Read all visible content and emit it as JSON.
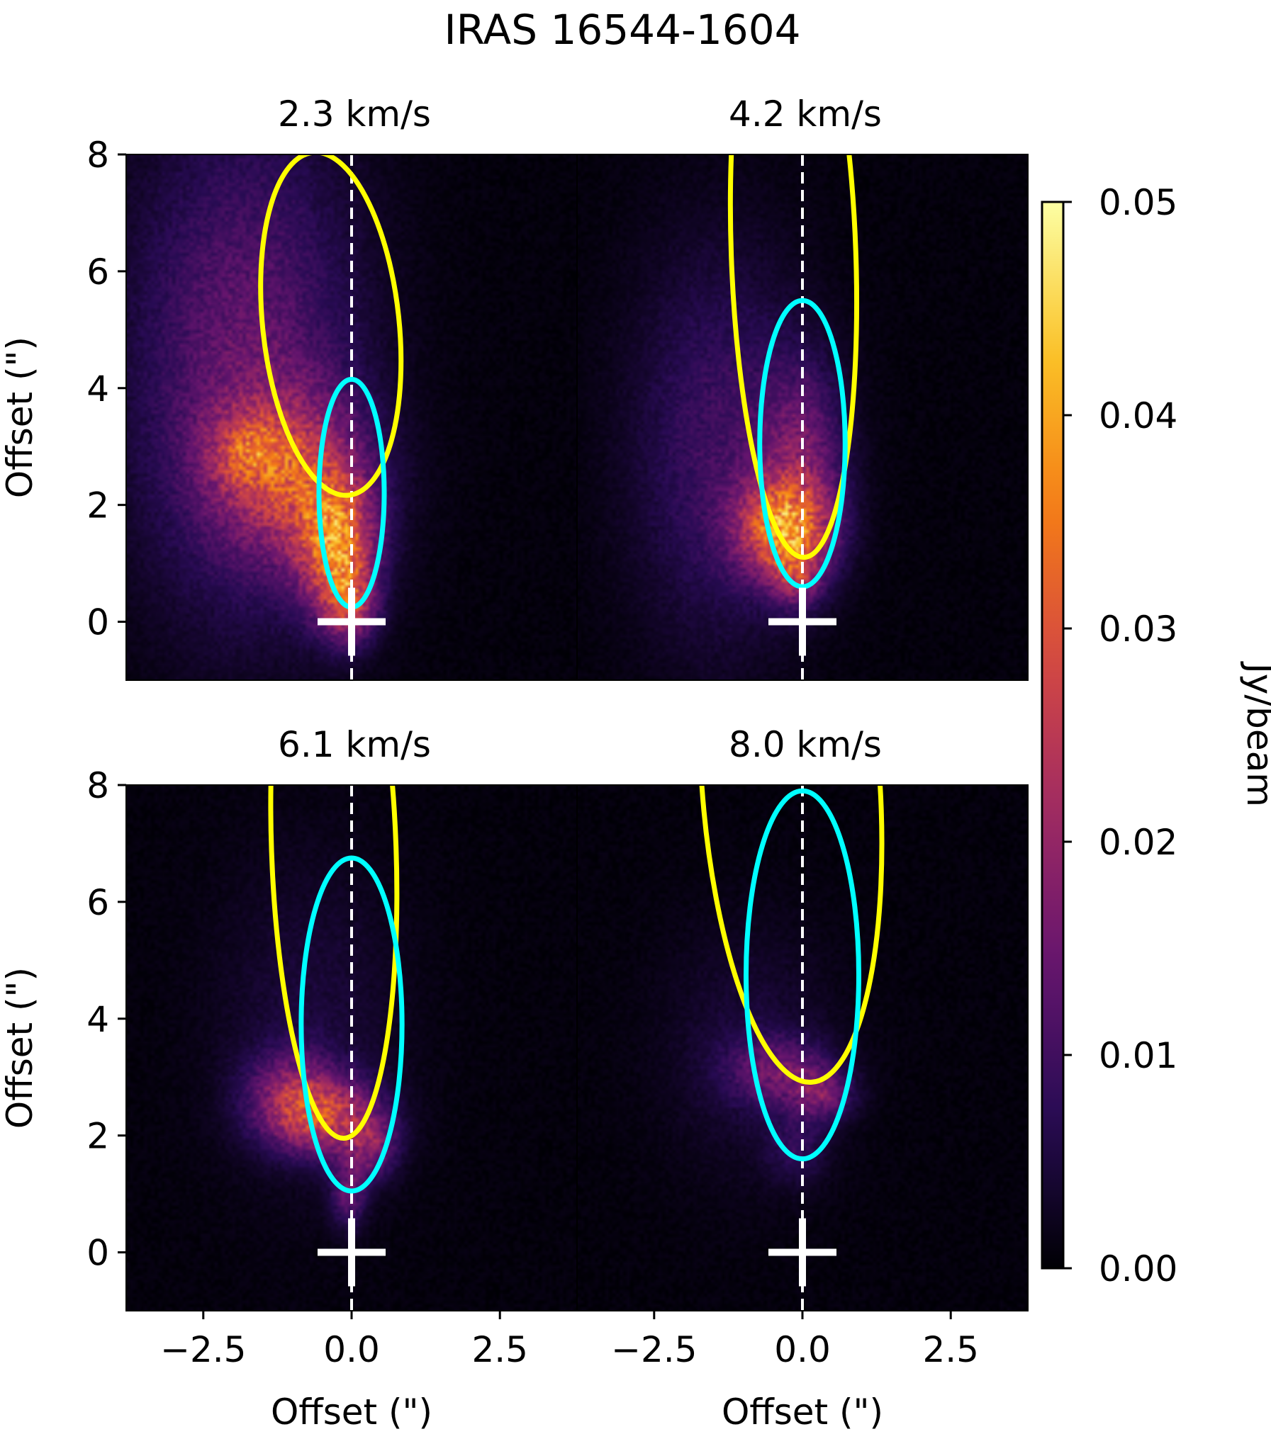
{
  "chart_data": {
    "type": "heatmap",
    "title": "IRAS 16544-1604",
    "colormap": "inferno",
    "xlim": [
      -3.8,
      3.8
    ],
    "ylim": [
      -1,
      8
    ],
    "x_ticks": [
      -2.5,
      0.0,
      2.5
    ],
    "x_tick_labels": [
      "−2.5",
      "0.0",
      "2.5"
    ],
    "y_ticks": [
      0,
      2,
      4,
      6,
      8
    ],
    "y_tick_labels": [
      "0",
      "2",
      "4",
      "6",
      "8"
    ],
    "xlabel": "Offset (\")",
    "ylabel": "Offset (\")",
    "colorbar": {
      "label": "Jy/beam",
      "range": [
        0.0,
        0.05
      ],
      "ticks": [
        0.0,
        0.01,
        0.02,
        0.03,
        0.04,
        0.05
      ],
      "tick_labels": [
        "0.00",
        "0.01",
        "0.02",
        "0.03",
        "0.04",
        "0.05"
      ]
    },
    "source_marker": {
      "x": 0,
      "y": 0,
      "symbol": "+",
      "color": "#ffffff"
    },
    "axis_line": {
      "x": 0,
      "style": "dashed",
      "color": "#ffffff"
    },
    "panels": [
      {
        "velocity_label": "2.3 km/s",
        "ellipses": [
          {
            "name": "yellow",
            "color": "#ffff00",
            "cx": -0.35,
            "cy": 5.1,
            "rx": 1.15,
            "ry": 2.95,
            "rotation_deg": 6
          },
          {
            "name": "cyan",
            "color": "#00ffff",
            "cx": 0.0,
            "cy": 2.2,
            "rx": 0.55,
            "ry": 1.95,
            "rotation_deg": 0
          }
        ],
        "emission_blobs": [
          {
            "x": -1.8,
            "y": 4.4,
            "sx": 1.3,
            "sy": 2.9,
            "amp": 0.013
          },
          {
            "x": -1.0,
            "y": 2.5,
            "sx": 0.9,
            "sy": 1.0,
            "amp": 0.018
          },
          {
            "x": -0.25,
            "y": 1.3,
            "sx": 0.45,
            "sy": 0.8,
            "amp": 0.028
          },
          {
            "x": -0.05,
            "y": 0.3,
            "sx": 0.3,
            "sy": 0.45,
            "amp": 0.018
          },
          {
            "x": -1.7,
            "y": 2.9,
            "sx": 0.45,
            "sy": 0.45,
            "amp": 0.012
          }
        ]
      },
      {
        "velocity_label": "4.2 km/s",
        "ellipses": [
          {
            "name": "yellow",
            "color": "#ffff00",
            "cx": -0.15,
            "cy": 6.3,
            "rx": 1.05,
            "ry": 5.2,
            "rotation_deg": 2
          },
          {
            "name": "cyan",
            "color": "#00ffff",
            "cx": 0.0,
            "cy": 3.05,
            "rx": 0.72,
            "ry": 2.45,
            "rotation_deg": 0
          }
        ],
        "emission_blobs": [
          {
            "x": -1.4,
            "y": 3.0,
            "sx": 1.0,
            "sy": 2.3,
            "amp": 0.009
          },
          {
            "x": -0.3,
            "y": 1.6,
            "sx": 0.55,
            "sy": 0.6,
            "amp": 0.03
          },
          {
            "x": 0.0,
            "y": 2.9,
            "sx": 0.5,
            "sy": 1.1,
            "amp": 0.012
          },
          {
            "x": -0.1,
            "y": 0.8,
            "sx": 0.3,
            "sy": 0.4,
            "amp": 0.012
          }
        ]
      },
      {
        "velocity_label": "6.1 km/s",
        "ellipses": [
          {
            "name": "yellow",
            "color": "#ffff00",
            "cx": -0.3,
            "cy": 6.9,
            "rx": 1.05,
            "ry": 4.95,
            "rotation_deg": 2
          },
          {
            "name": "cyan",
            "color": "#00ffff",
            "cx": 0.0,
            "cy": 3.9,
            "rx": 0.85,
            "ry": 2.85,
            "rotation_deg": 0
          }
        ],
        "emission_blobs": [
          {
            "x": -0.5,
            "y": 2.3,
            "sx": 0.65,
            "sy": 0.45,
            "amp": 0.022
          },
          {
            "x": -1.0,
            "y": 2.8,
            "sx": 0.55,
            "sy": 0.5,
            "amp": 0.012
          },
          {
            "x": 0.35,
            "y": 1.8,
            "sx": 0.3,
            "sy": 0.4,
            "amp": 0.012
          },
          {
            "x": -0.05,
            "y": 1.0,
            "sx": 0.2,
            "sy": 0.4,
            "amp": 0.012
          },
          {
            "x": -0.7,
            "y": 4.0,
            "sx": 1.1,
            "sy": 2.0,
            "amp": 0.004
          }
        ]
      },
      {
        "velocity_label": "8.0 km/s",
        "ellipses": [
          {
            "name": "yellow",
            "color": "#ffff00",
            "cx": -0.2,
            "cy": 8.1,
            "rx": 1.5,
            "ry": 5.2,
            "rotation_deg": 4
          },
          {
            "name": "cyan",
            "color": "#00ffff",
            "cx": 0.0,
            "cy": 4.75,
            "rx": 0.95,
            "ry": 3.15,
            "rotation_deg": 0
          }
        ],
        "emission_blobs": [
          {
            "x": -0.4,
            "y": 3.1,
            "sx": 0.6,
            "sy": 0.4,
            "amp": 0.012
          },
          {
            "x": 0.35,
            "y": 2.7,
            "sx": 0.35,
            "sy": 0.3,
            "amp": 0.012
          },
          {
            "x": -0.1,
            "y": 1.8,
            "sx": 0.35,
            "sy": 0.45,
            "amp": 0.006
          },
          {
            "x": -0.9,
            "y": 3.5,
            "sx": 1.0,
            "sy": 1.5,
            "amp": 0.004
          }
        ]
      }
    ]
  }
}
